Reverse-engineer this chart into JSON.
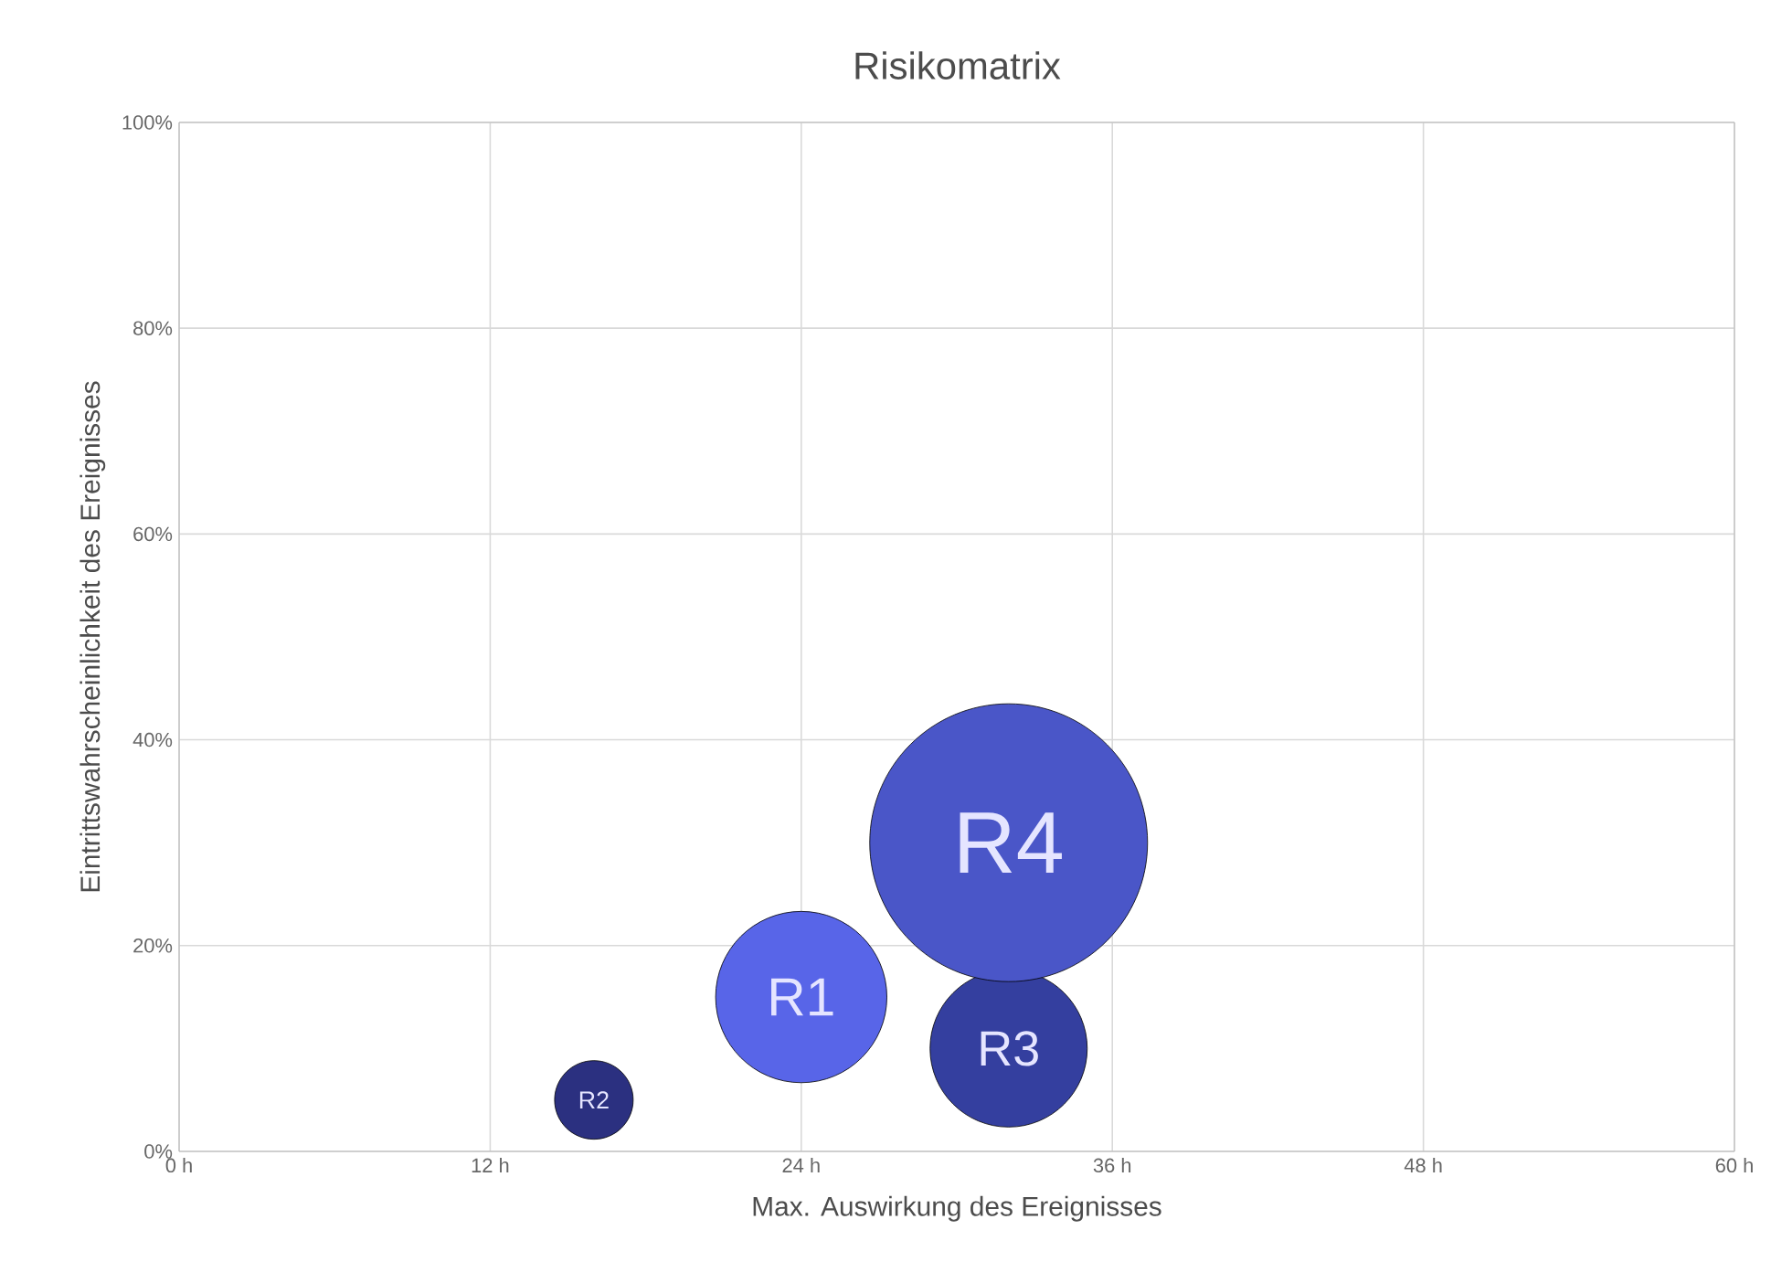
{
  "chart_data": {
    "type": "bubble",
    "title": "Risikomatrix",
    "xlabel": "Max. Auswirkung des Ereignisses",
    "ylabel": "Eintrittswahrscheinlichkeit des Ereignisses",
    "xlim": [
      0,
      60
    ],
    "ylim": [
      0,
      100
    ],
    "xticks": [
      {
        "value": 0,
        "label": "0 h"
      },
      {
        "value": 12,
        "label": "12 h"
      },
      {
        "value": 24,
        "label": "24 h"
      },
      {
        "value": 36,
        "label": "36 h"
      },
      {
        "value": 48,
        "label": "48 h"
      },
      {
        "value": 60,
        "label": "60 h"
      }
    ],
    "yticks": [
      {
        "value": 0,
        "label": "0%"
      },
      {
        "value": 20,
        "label": "20%"
      },
      {
        "value": 40,
        "label": "40%"
      },
      {
        "value": 60,
        "label": "60%"
      },
      {
        "value": 80,
        "label": "80%"
      },
      {
        "value": 100,
        "label": "100%"
      }
    ],
    "grid": true,
    "x": [
      24,
      16,
      32,
      32
    ],
    "values": [
      15,
      5,
      10,
      30
    ],
    "sizes": [
      0.38,
      0.08,
      0.32,
      1
    ],
    "colors": [
      "#5865e8",
      "#2b3080",
      "#343f9f",
      "#4a56c8"
    ],
    "annotations": [
      {
        "text": "R1",
        "x": 24,
        "y": 15
      },
      {
        "text": "R2",
        "x": 16,
        "y": 5
      },
      {
        "text": "R3",
        "x": 32,
        "y": 10
      },
      {
        "text": "R4",
        "x": 32,
        "y": 30
      }
    ]
  }
}
